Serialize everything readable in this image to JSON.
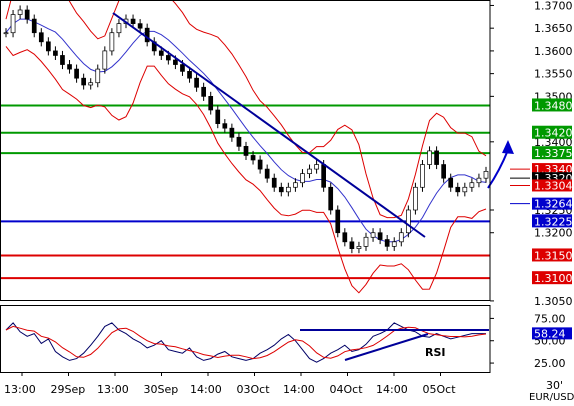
{
  "chart_data": {
    "type": "candlestick",
    "instrument_label": "EUR/USD",
    "timeframe_label": "30'",
    "price_axis": {
      "range": [
        1.3052,
        1.3712
      ],
      "ticks": [
        "1.3700",
        "1.3650",
        "1.3600",
        "1.3550",
        "1.3500",
        "1.3400",
        "1.3250",
        "1.3200",
        "1.3050"
      ]
    },
    "time_axis": {
      "labels": [
        "13:00",
        "29Sep",
        "13:00",
        "30Sep",
        "14:00",
        "03Oct",
        "14:00",
        "04Oct",
        "14:00",
        "05Oct"
      ]
    },
    "levels": [
      {
        "value": 1.348,
        "label": "1.3480",
        "color": "#009900",
        "kind": "resistance"
      },
      {
        "value": 1.342,
        "label": "1.3420",
        "color": "#009900",
        "kind": "resistance"
      },
      {
        "value": 1.3375,
        "label": "1.3375",
        "color": "#009900",
        "kind": "resistance"
      },
      {
        "value": 1.3225,
        "label": "1.3225",
        "color": "#0000cc",
        "kind": "support"
      },
      {
        "value": 1.315,
        "label": "1.3150",
        "color": "#dd0000",
        "kind": "support"
      },
      {
        "value": 1.31,
        "label": "1.3100",
        "color": "#dd0000",
        "kind": "support"
      }
    ],
    "current_price_labels": [
      {
        "value": 1.334,
        "label": "1.3340",
        "color": "#dd0000"
      },
      {
        "value": 1.332,
        "label": "1.3320",
        "color": "#000000"
      },
      {
        "value": 1.3304,
        "label": "1.3304",
        "color": "#dd0000"
      },
      {
        "value": 1.3264,
        "label": "1.3264",
        "color": "#0000cc"
      }
    ],
    "price_close": [
      1.364,
      1.368,
      1.369,
      1.367,
      1.364,
      1.362,
      1.36,
      1.359,
      1.357,
      1.356,
      1.354,
      1.3525,
      1.353,
      1.356,
      1.36,
      1.364,
      1.366,
      1.367,
      1.366,
      1.365,
      1.362,
      1.36,
      1.359,
      1.358,
      1.357,
      1.3555,
      1.354,
      1.352,
      1.35,
      1.347,
      1.344,
      1.343,
      1.341,
      1.339,
      1.337,
      1.336,
      1.334,
      1.332,
      1.33,
      1.329,
      1.33,
      1.331,
      1.333,
      1.334,
      1.335,
      1.33,
      1.325,
      1.32,
      1.318,
      1.3165,
      1.317,
      1.319,
      1.32,
      1.3185,
      1.317,
      1.318,
      1.32,
      1.325,
      1.33,
      1.335,
      1.338,
      1.335,
      1.332,
      1.33,
      1.329,
      1.33,
      1.331,
      1.332,
      1.3335
    ],
    "rsi_panel": {
      "label": "RSI",
      "range": [
        15,
        90
      ],
      "ticks": [
        "75.00",
        "50.00",
        "25.00"
      ],
      "current_label": "58.24",
      "values": [
        62,
        70,
        60,
        55,
        58,
        47,
        52,
        38,
        32,
        28,
        30,
        36,
        45,
        55,
        66,
        70,
        62,
        58,
        52,
        48,
        42,
        45,
        50,
        40,
        38,
        36,
        42,
        32,
        28,
        30,
        35,
        38,
        32,
        30,
        28,
        30,
        36,
        40,
        45,
        52,
        57,
        50,
        40,
        30,
        26,
        30,
        36,
        40,
        45,
        38,
        40,
        46,
        55,
        58,
        62,
        70,
        66,
        62,
        60,
        55,
        54,
        58,
        55,
        52,
        54,
        56,
        58,
        58,
        58
      ]
    }
  }
}
